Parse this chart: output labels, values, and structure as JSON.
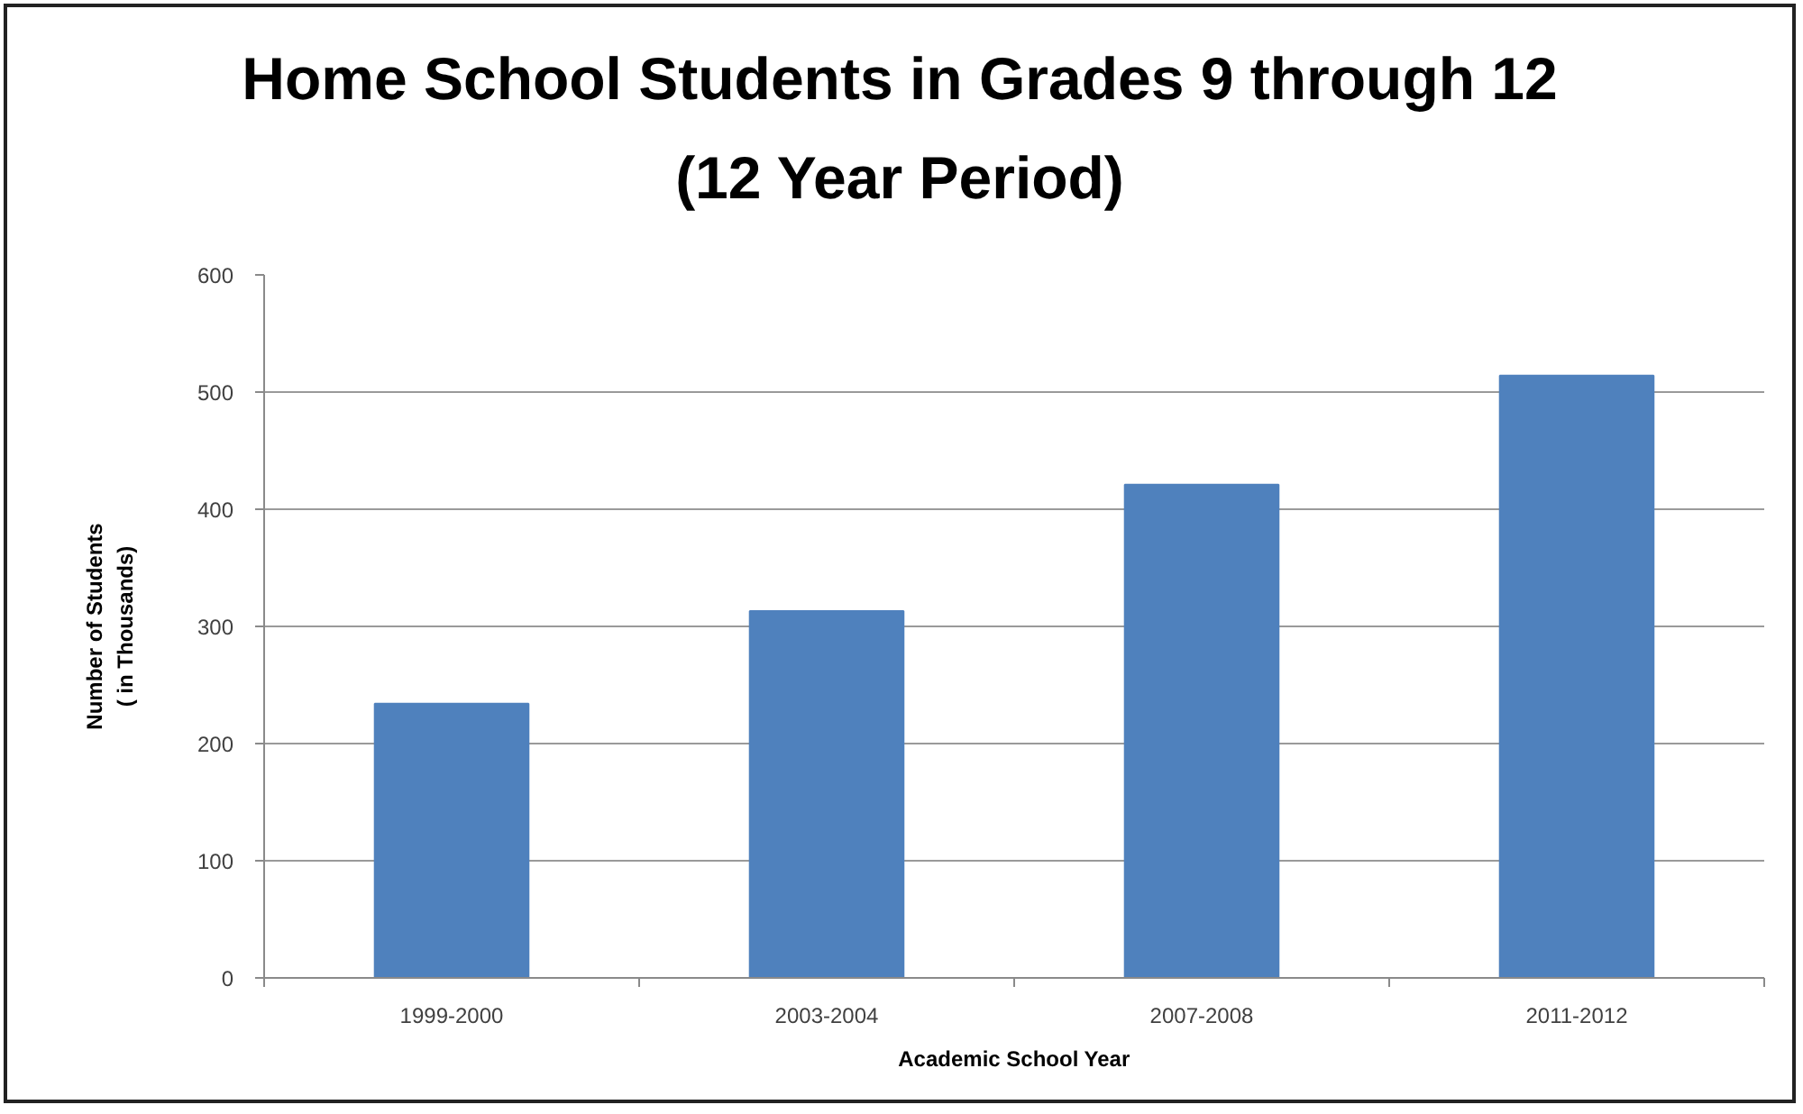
{
  "chart_data": {
    "type": "bar",
    "title": "Home School Students in Grades 9 through 12\n(12 Year Period)",
    "xlabel": "Academic School Year",
    "ylabel": "Number of Students\n( in Thousands)",
    "categories": [
      "1999-2000",
      "2003-2004",
      "2007-2008",
      "2011-2012"
    ],
    "values": [
      234,
      313,
      421,
      514
    ],
    "color": "#4f81bd",
    "ylim": [
      0,
      600
    ],
    "yticks": [
      0,
      100,
      200,
      300,
      400,
      500,
      600
    ],
    "grid": "y"
  }
}
